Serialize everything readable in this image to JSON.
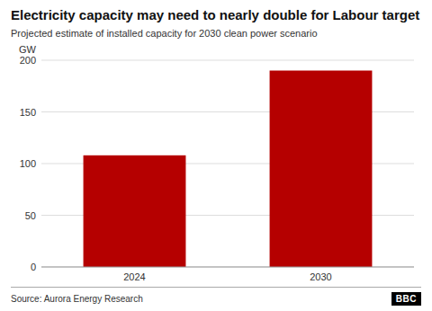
{
  "chart_data": {
    "type": "bar",
    "title": "Electricity capacity may need to nearly double for Labour target",
    "subtitle": "Projected estimate of installed capacity for 2030 clean power scenario",
    "ylabel": "GW",
    "categories": [
      "2024",
      "2030"
    ],
    "values": [
      108,
      190
    ],
    "color": "#b50000",
    "ylim": [
      0,
      200
    ],
    "yticks": [
      0,
      50,
      100,
      150,
      200
    ],
    "grid": true,
    "source": "Source: Aurora Energy Research",
    "logo": "BBC"
  }
}
